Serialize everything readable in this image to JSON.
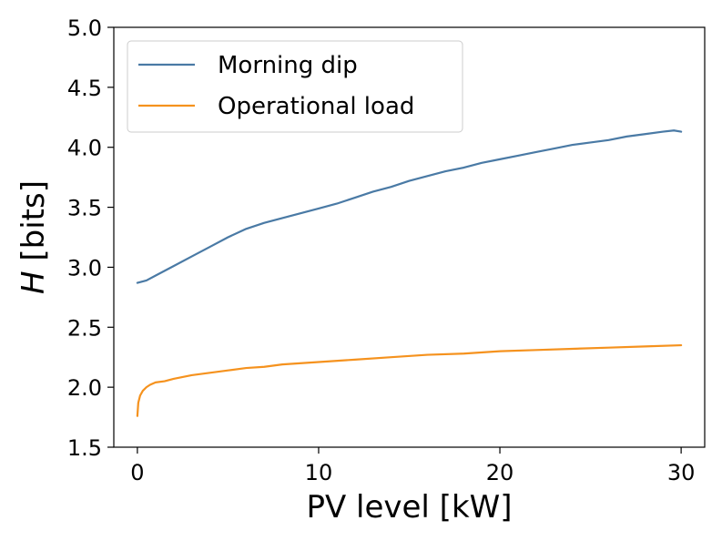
{
  "chart_data": {
    "type": "line",
    "title": "",
    "xlabel": "PV level [kW]",
    "ylabel_italic": "H",
    "ylabel_rest": " [bits]",
    "xlim": [
      -1.3,
      31.3
    ],
    "ylim": [
      1.5,
      5.0
    ],
    "xticks": [
      0,
      10,
      20,
      30
    ],
    "yticks": [
      1.5,
      2.0,
      2.5,
      3.0,
      3.5,
      4.0,
      4.5,
      5.0
    ],
    "xtick_labels": [
      "0",
      "10",
      "20",
      "30"
    ],
    "ytick_labels": [
      "1.5",
      "2.0",
      "2.5",
      "3.0",
      "3.5",
      "4.0",
      "4.5",
      "5.0"
    ],
    "grid": false,
    "legend_position": "top-left",
    "series": [
      {
        "name": "Morning dip",
        "color": "#4a7aa5",
        "x": [
          0,
          0.5,
          1,
          2,
          3,
          4,
          5,
          6,
          7,
          8,
          9,
          10,
          11,
          12,
          13,
          14,
          15,
          16,
          17,
          18,
          19,
          20,
          21,
          22,
          23,
          24,
          25,
          26,
          27,
          28,
          29,
          29.6,
          30
        ],
        "y": [
          2.87,
          2.89,
          2.93,
          3.01,
          3.09,
          3.17,
          3.25,
          3.32,
          3.37,
          3.41,
          3.45,
          3.49,
          3.53,
          3.58,
          3.63,
          3.67,
          3.72,
          3.76,
          3.8,
          3.83,
          3.87,
          3.9,
          3.93,
          3.96,
          3.99,
          4.02,
          4.04,
          4.06,
          4.09,
          4.11,
          4.13,
          4.14,
          4.13
        ]
      },
      {
        "name": "Operational load",
        "color": "#f5921e",
        "x": [
          0,
          0.05,
          0.15,
          0.3,
          0.5,
          0.7,
          1,
          1.5,
          2,
          3,
          4,
          5,
          6,
          7,
          8,
          10,
          12,
          14,
          16,
          18,
          20,
          22,
          24,
          26,
          28,
          30
        ],
        "y": [
          1.76,
          1.87,
          1.93,
          1.97,
          2.0,
          2.02,
          2.04,
          2.05,
          2.07,
          2.1,
          2.12,
          2.14,
          2.16,
          2.17,
          2.19,
          2.21,
          2.23,
          2.25,
          2.27,
          2.28,
          2.3,
          2.31,
          2.32,
          2.33,
          2.34,
          2.35
        ]
      }
    ]
  }
}
